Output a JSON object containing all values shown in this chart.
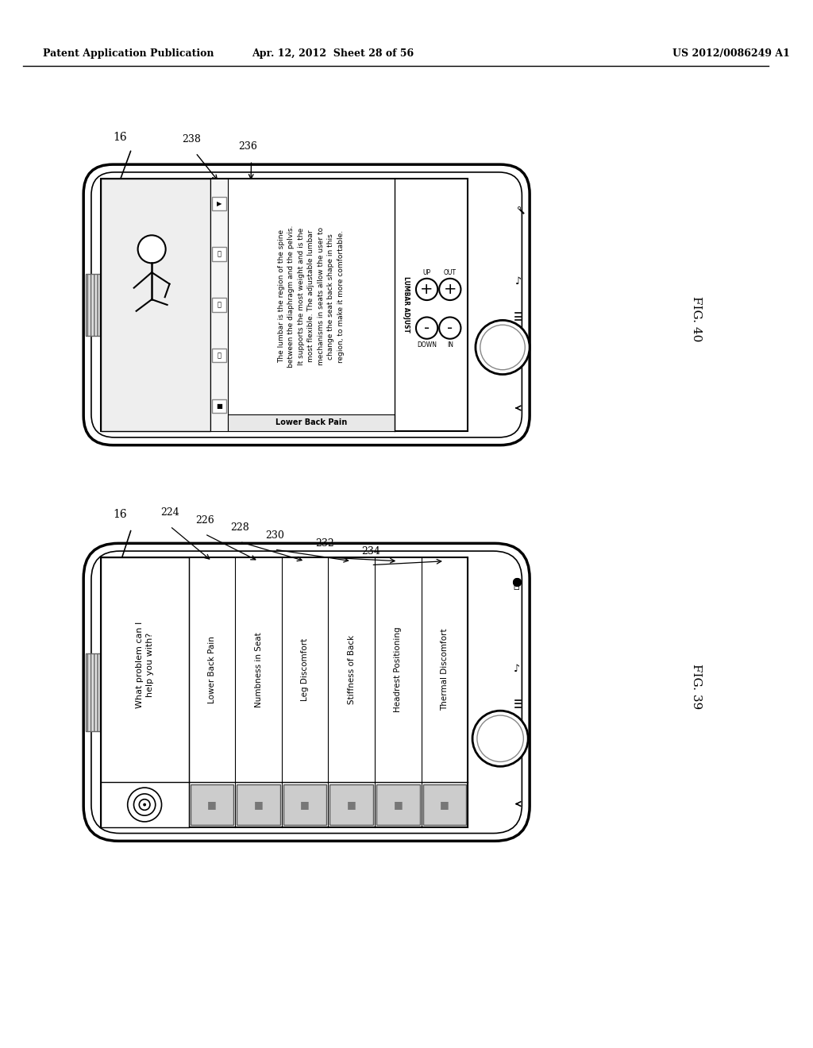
{
  "bg_color": "#ffffff",
  "header_left": "Patent Application Publication",
  "header_mid": "Apr. 12, 2012  Sheet 28 of 56",
  "header_right": "US 2012/0086249 A1",
  "fig40_label": "FIG. 40",
  "fig39_label": "FIG. 39",
  "fig40_ref": "16",
  "fig39_ref": "16",
  "fig40_refs": [
    "238",
    "236"
  ],
  "fig39_refs": [
    "224",
    "226",
    "228",
    "230",
    "232",
    "234"
  ],
  "fig40_body_text": "The lumbar is the region of the spine\nbetween the diaphragm and the pelvis.\nIt supports the most weight and is the\nmost flexible. The adjustable lumbar\nmechanisms in seats allow the user to\nchange the seat back shape in this\nregion, to make it more comfortable.",
  "fig40_title": "Lower Back Pain",
  "fig40_lumbar": "LUMBAR ADJUST",
  "fig40_controls_up": "UP",
  "fig40_controls_out": "OUT",
  "fig40_controls_down": "DOWN",
  "fig40_controls_in": "IN",
  "fig39_header": "What problem can I\nhelp you with?",
  "fig39_items": [
    "Lower Back Pain",
    "Numbness in Seat",
    "Leg Discomfort",
    "Stiffness of Back",
    "Headrest Positioning",
    "Thermal Discomfort"
  ]
}
